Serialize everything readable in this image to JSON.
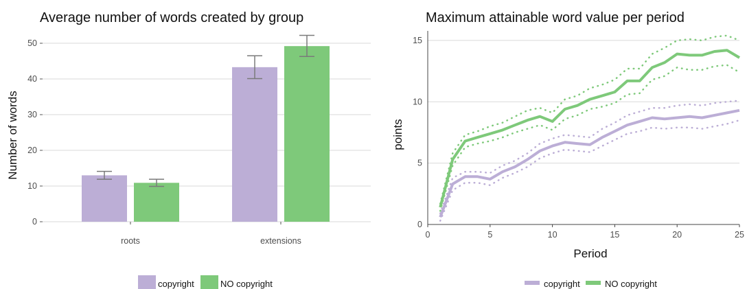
{
  "colors": {
    "copyright": "#bcaed6",
    "no_copyright": "#7ec97a",
    "error_bar": "#7a7a7a"
  },
  "chart_data": [
    {
      "type": "bar",
      "title": "Average number of words created by group",
      "xlabel": "",
      "ylabel": "Number of words",
      "categories": [
        "roots",
        "extensions"
      ],
      "ylim": [
        0,
        52.5
      ],
      "yticks": [
        0,
        10,
        20,
        30,
        40,
        50
      ],
      "grid": true,
      "legend_position": "bottom",
      "series": [
        {
          "name": "copyright",
          "values": [
            13.0,
            43.3
          ],
          "err_low": [
            11.9,
            40.1
          ],
          "err_high": [
            14.1,
            46.5
          ]
        },
        {
          "name": "NO copyright",
          "values": [
            10.9,
            49.2
          ],
          "err_low": [
            9.9,
            46.3
          ],
          "err_high": [
            11.9,
            52.2
          ]
        }
      ]
    },
    {
      "type": "line",
      "title": "Maximum attainable word value per period",
      "xlabel": "Period",
      "ylabel": "points",
      "xlim": [
        0,
        25
      ],
      "ylim": [
        0,
        15.5
      ],
      "xticks": [
        0,
        5,
        10,
        15,
        20,
        25
      ],
      "yticks": [
        0,
        5,
        10,
        15
      ],
      "grid": true,
      "legend_position": "bottom",
      "x": [
        1,
        2,
        3,
        4,
        5,
        6,
        7,
        8,
        9,
        10,
        11,
        12,
        13,
        14,
        15,
        16,
        17,
        18,
        19,
        20,
        21,
        22,
        23,
        24,
        25
      ],
      "series": [
        {
          "name": "copyright",
          "values": [
            0.6,
            3.3,
            3.9,
            3.9,
            3.7,
            4.3,
            4.7,
            5.3,
            6.0,
            6.4,
            6.7,
            6.6,
            6.5,
            7.1,
            7.6,
            8.1,
            8.4,
            8.7,
            8.6,
            8.7,
            8.8,
            8.7,
            8.9,
            9.1,
            9.3
          ],
          "upper": [
            0.9,
            3.8,
            4.3,
            4.3,
            4.2,
            4.8,
            5.2,
            5.8,
            6.6,
            7.0,
            7.3,
            7.2,
            7.1,
            7.8,
            8.3,
            8.9,
            9.2,
            9.5,
            9.5,
            9.7,
            9.8,
            9.7,
            9.9,
            10.0,
            10.1
          ],
          "lower": [
            0.3,
            2.8,
            3.4,
            3.4,
            3.2,
            3.8,
            4.2,
            4.7,
            5.4,
            5.8,
            6.1,
            6.0,
            5.9,
            6.4,
            6.9,
            7.4,
            7.6,
            7.9,
            7.8,
            7.9,
            7.9,
            7.8,
            8.0,
            8.2,
            8.5
          ]
        },
        {
          "name": "NO copyright",
          "values": [
            1.4,
            5.3,
            6.8,
            7.1,
            7.4,
            7.7,
            8.1,
            8.5,
            8.8,
            8.4,
            9.4,
            9.7,
            10.2,
            10.5,
            10.8,
            11.7,
            11.7,
            12.8,
            13.2,
            13.9,
            13.8,
            13.8,
            14.1,
            14.2,
            13.6
          ],
          "upper": [
            1.7,
            5.8,
            7.3,
            7.6,
            8.0,
            8.3,
            8.8,
            9.3,
            9.5,
            9.1,
            10.2,
            10.5,
            11.1,
            11.4,
            11.8,
            12.7,
            12.7,
            13.9,
            14.4,
            15.0,
            15.1,
            15.0,
            15.3,
            15.4,
            15.0
          ],
          "lower": [
            1.1,
            4.8,
            6.3,
            6.6,
            6.8,
            7.1,
            7.5,
            7.8,
            8.1,
            7.7,
            8.6,
            8.9,
            9.4,
            9.6,
            9.9,
            10.6,
            10.7,
            11.8,
            12.1,
            12.8,
            12.6,
            12.6,
            12.9,
            13.0,
            12.4
          ]
        }
      ]
    }
  ]
}
